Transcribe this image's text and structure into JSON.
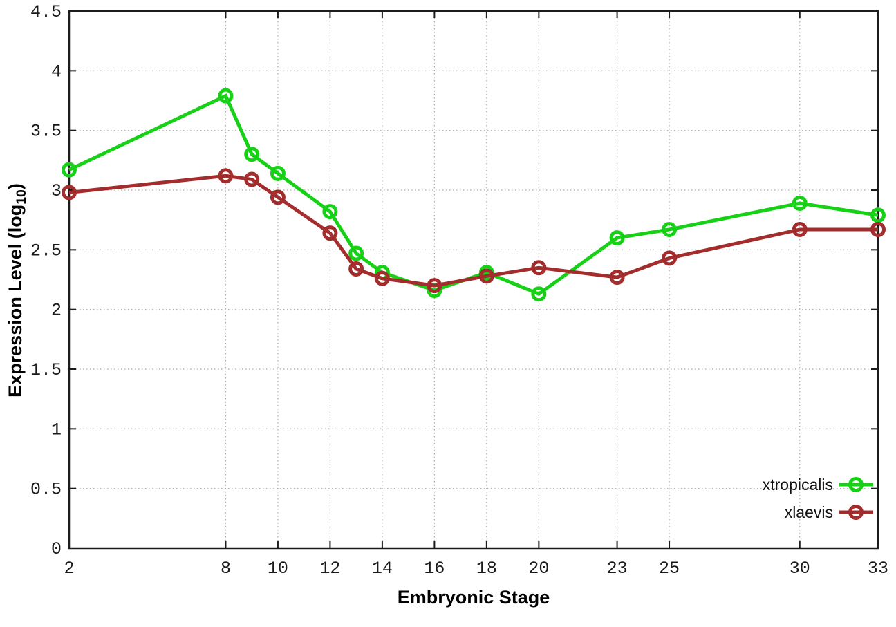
{
  "labels": {
    "y_pre": "Expression Level (log",
    "y_sub": "10",
    "y_post": ")",
    "x": "Embryonic Stage"
  },
  "chart_data": {
    "type": "line",
    "title": "",
    "xlabel": "Embryonic Stage",
    "ylabel": "Expression Level (log10)",
    "x": [
      2,
      8,
      9,
      10,
      12,
      13,
      14,
      16,
      18,
      20,
      23,
      25,
      30,
      33
    ],
    "x_ticks": [
      2,
      8,
      10,
      12,
      14,
      16,
      18,
      20,
      23,
      25,
      30,
      33
    ],
    "y_ticks": [
      0,
      0.5,
      1,
      1.5,
      2,
      2.5,
      3,
      3.5,
      4,
      4.5
    ],
    "xlim": [
      2,
      33
    ],
    "ylim": [
      0,
      4.5
    ],
    "grid": true,
    "legend_position": "bottom-right",
    "marker_style": "open-circle",
    "series": [
      {
        "name": "xtropicalis",
        "color": "#17d117",
        "values": [
          3.17,
          3.79,
          3.3,
          3.14,
          2.82,
          2.47,
          2.31,
          2.16,
          2.31,
          2.13,
          2.6,
          2.67,
          2.89,
          2.79
        ]
      },
      {
        "name": "xlaevis",
        "color": "#a32c2c",
        "values": [
          2.98,
          3.12,
          3.09,
          2.94,
          2.64,
          2.34,
          2.26,
          2.2,
          2.28,
          2.35,
          2.27,
          2.43,
          2.67,
          2.67
        ]
      }
    ],
    "colors": {
      "grid": "#a8a8a8",
      "border": "#1c1c1c",
      "background": "#ffffff"
    }
  }
}
